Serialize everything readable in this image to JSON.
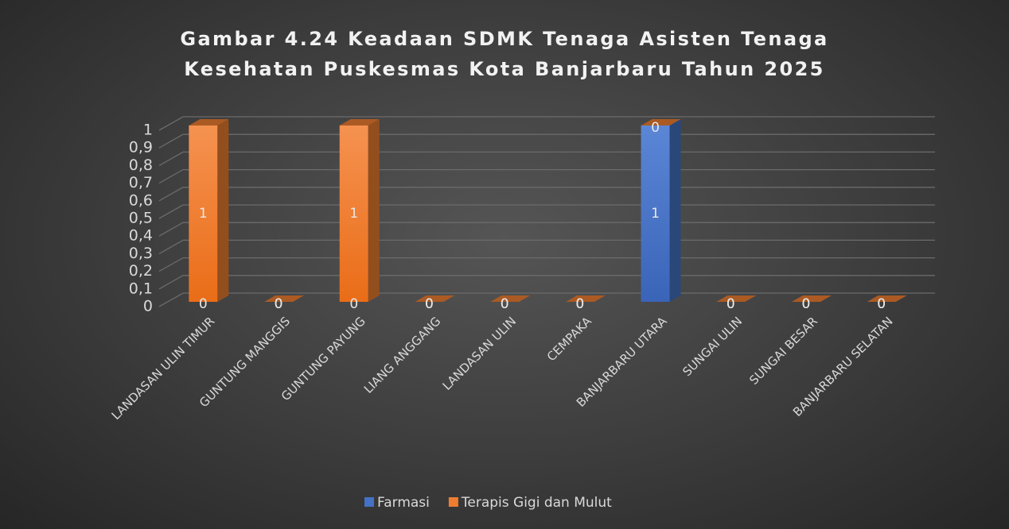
{
  "chart_data": {
    "type": "bar3d-stacked",
    "title": "Gambar 4.24 Keadaan SDMK Tenaga Asisten Tenaga Kesehatan Puskesmas Kota Banjarbaru Tahun 2025",
    "categories": [
      "LANDASAN ULIN TIMUR",
      "GUNTUNG MANGGIS",
      "GUNTUNG PAYUNG",
      "LIANG ANGGANG",
      "LANDASAN ULIN",
      "CEMPAKA",
      "BANJARBARU UTARA",
      "SUNGAI ULIN",
      "SUNGAI BESAR",
      "BANJARBARU SELATAN"
    ],
    "series": [
      {
        "name": "Farmasi",
        "color": "#4472c4",
        "values": [
          0,
          0,
          0,
          0,
          0,
          0,
          1,
          0,
          0,
          0
        ]
      },
      {
        "name": "Terapis Gigi dan Mulut",
        "color": "#ed7d31",
        "values": [
          1,
          0,
          1,
          0,
          0,
          0,
          0,
          0,
          0,
          0
        ]
      }
    ],
    "ylim": [
      0,
      1
    ],
    "yticks": [
      0,
      {
        "value": 0.1,
        "label": "0,1"
      },
      {
        "value": 0.2,
        "label": "0,2"
      },
      {
        "value": 0.3,
        "label": "0,3"
      },
      {
        "value": 0.4,
        "label": "0,4"
      },
      {
        "value": 0.5,
        "label": "0,5"
      },
      {
        "value": 0.6,
        "label": "0,6"
      },
      {
        "value": 0.7,
        "label": "0,7"
      },
      {
        "value": 0.8,
        "label": "0,8"
      },
      {
        "value": 0.9,
        "label": "0,9"
      },
      1
    ],
    "grid": true,
    "legend": "bottom"
  }
}
